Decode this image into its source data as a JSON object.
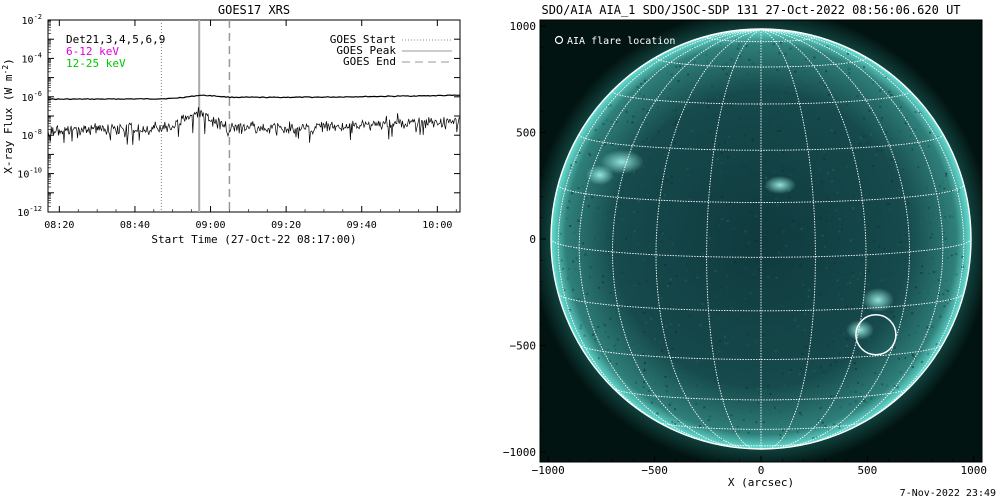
{
  "left_panel": {
    "title": "GOES17 XRS",
    "ylabel_prefix": "X-ray Flux (W m",
    "ylabel_exp": "-2",
    "ylabel_suffix": ")",
    "xlabel": "Start Time (27-Oct-22 08:17:00)",
    "y_ticks": [
      {
        "base": "10",
        "exp": "-2"
      },
      {
        "base": "10",
        "exp": "-4"
      },
      {
        "base": "10",
        "exp": "-6"
      },
      {
        "base": "10",
        "exp": "-8"
      },
      {
        "base": "10",
        "exp": "-10"
      },
      {
        "base": "10",
        "exp": "-12"
      }
    ],
    "x_ticks": [
      "08:20",
      "08:40",
      "09:00",
      "09:20",
      "09:40",
      "10:00"
    ],
    "channels": [
      {
        "text": "Det21,3,4,5,6,9",
        "color": "#000000"
      },
      {
        "text": "6-12 keV",
        "color": "#e000e0"
      },
      {
        "text": "12-25 keV",
        "color": "#00c800"
      }
    ],
    "legend": [
      {
        "label": "GOES Start",
        "style": "dotted"
      },
      {
        "label": "GOES Peak",
        "style": "solid"
      },
      {
        "label": "GOES End",
        "style": "dashed"
      }
    ]
  },
  "chart_data": {
    "type": "line",
    "title": "GOES17 XRS",
    "xlabel": "Start Time (27-Oct-22 08:17:00)",
    "ylabel": "X-ray Flux (W m-2)",
    "y_scale": "log",
    "ylim": [
      1e-12,
      0.01
    ],
    "xlim": [
      "08:17",
      "10:06"
    ],
    "series": [
      {
        "name": "12-25 keV",
        "color": "#000000",
        "x": [
          "08:17",
          "08:30",
          "08:45",
          "08:50",
          "08:55",
          "08:57",
          "09:00",
          "09:05",
          "09:15",
          "09:30",
          "09:45",
          "10:00",
          "10:06"
        ],
        "y": [
          7.5e-07,
          7.6e-07,
          7.8e-07,
          8.2e-07,
          1.05e-06,
          1.2e-06,
          1.15e-06,
          9.5e-07,
          9.3e-07,
          9.6e-07,
          1.05e-06,
          1.15e-06,
          1.2e-06
        ]
      },
      {
        "name": "6-12 keV",
        "color": "#000000",
        "x": [
          "08:17",
          "08:30",
          "08:45",
          "08:50",
          "08:55",
          "08:57",
          "09:00",
          "09:05",
          "09:15",
          "09:30",
          "09:45",
          "10:00",
          "10:06"
        ],
        "y": [
          2.2e-08,
          2.5e-08,
          2.8e-08,
          4e-08,
          1.2e-07,
          1.4e-07,
          8e-08,
          3e-08,
          2.6e-08,
          3.5e-08,
          5e-08,
          6e-08,
          6.5e-08
        ]
      }
    ],
    "events": [
      {
        "label": "GOES Start",
        "time": "08:47",
        "style": "dotted"
      },
      {
        "label": "GOES Peak",
        "time": "08:57",
        "style": "solid"
      },
      {
        "label": "GOES End",
        "time": "09:05",
        "style": "dashed"
      }
    ]
  },
  "right_panel": {
    "title": "SDO/AIA AIA_1 SDO/JSOC-SDP 131 27-Oct-2022 08:56:06.620 UT",
    "xlabel": "X (arcsec)",
    "x_ticks": [
      "−1000",
      "−500",
      "0",
      "500",
      "1000"
    ],
    "y_ticks": [
      "1000",
      "500",
      "0",
      "−500",
      "−1000"
    ],
    "legend_label": "AIA flare location",
    "flare_location_arcsec": [
      540,
      -450
    ],
    "solar_radius_arcsec": 987,
    "disk_color": "#2a8f8a",
    "corona_color": "#3fd0c4"
  },
  "footer": {
    "timestamp": "7-Nov-2022 23:49"
  }
}
